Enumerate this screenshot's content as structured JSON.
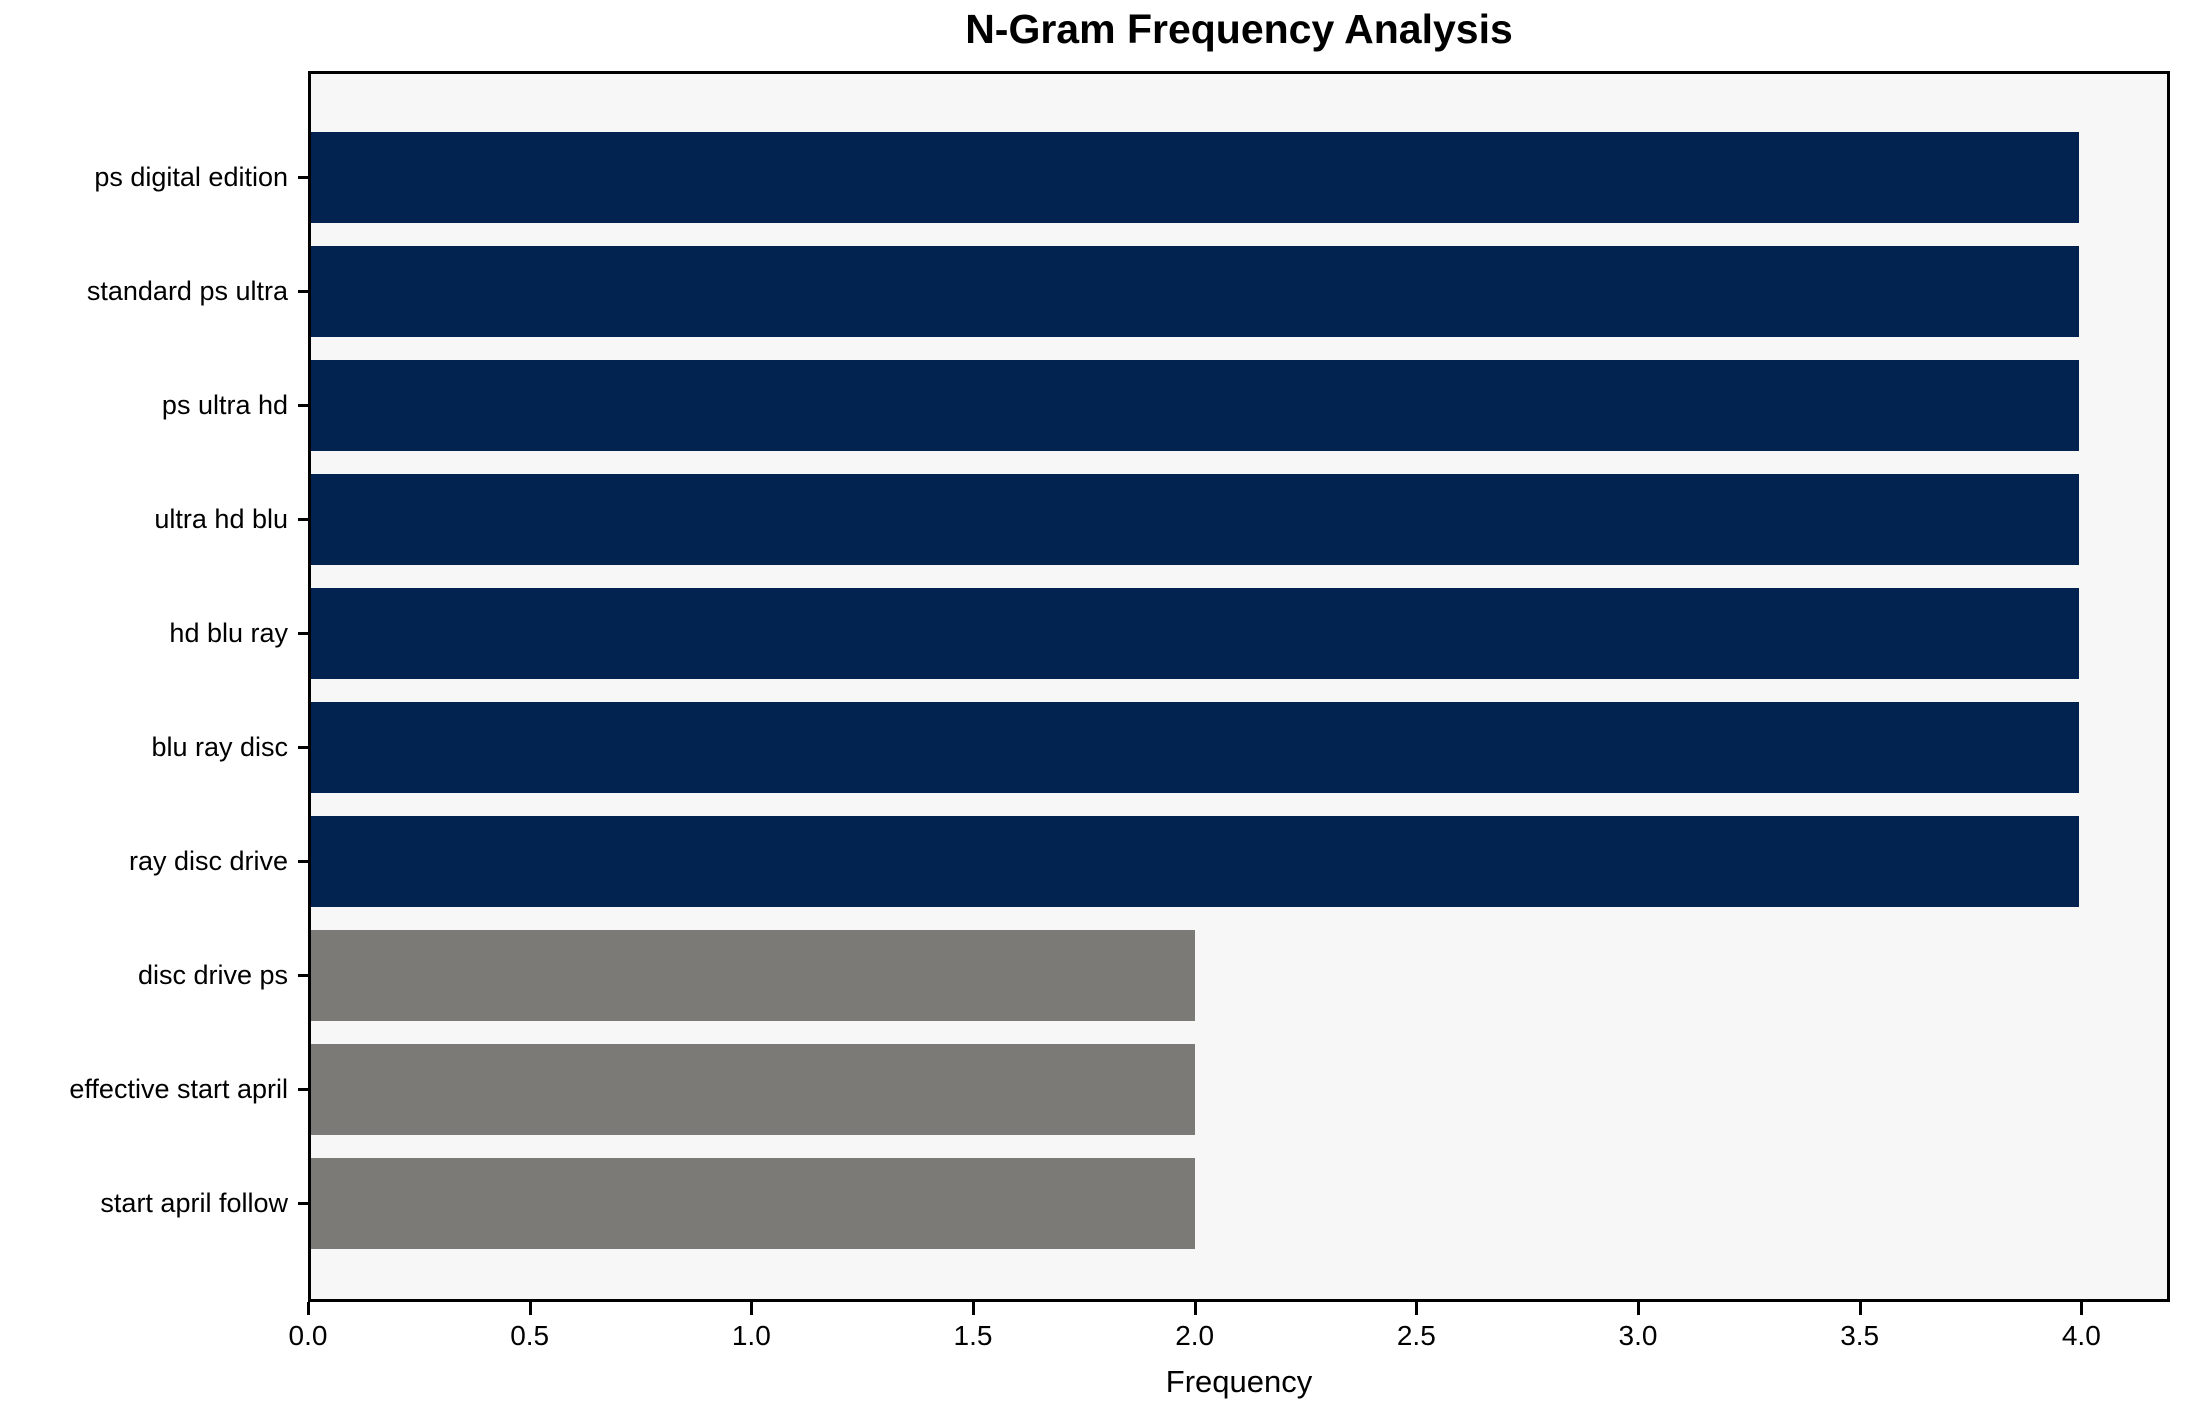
{
  "title": "N-Gram Frequency Analysis",
  "chart_data": {
    "type": "bar",
    "orientation": "horizontal",
    "title": "N-Gram Frequency Analysis",
    "xlabel": "Frequency",
    "ylabel": "",
    "categories": [
      "ps digital edition",
      "standard ps ultra",
      "ps ultra hd",
      "ultra hd blu",
      "hd blu ray",
      "blu ray disc",
      "ray disc drive",
      "disc drive ps",
      "effective start april",
      "start april follow"
    ],
    "values": [
      4,
      4,
      4,
      4,
      4,
      4,
      4,
      2,
      2,
      2
    ],
    "bar_colors": [
      "#02234F",
      "#02234F",
      "#02234F",
      "#02234F",
      "#02234F",
      "#02234F",
      "#02234F",
      "#7B7A76",
      "#7B7A76",
      "#7B7A76"
    ],
    "x_ticks": [
      0,
      0.5,
      1,
      1.5,
      2,
      2.5,
      3,
      3.5,
      4
    ],
    "x_tick_labels": [
      "0.0",
      "0.5",
      "1.0",
      "1.5",
      "2.0",
      "2.5",
      "3.0",
      "3.5",
      "4.0"
    ],
    "xlim": [
      0,
      4.2
    ],
    "grid": false,
    "legend": null,
    "plot_background": "#F7F7F7",
    "figure_background": "#FFFFFF",
    "navy_color": "#02234F",
    "gray_color": "#7B7A76"
  }
}
